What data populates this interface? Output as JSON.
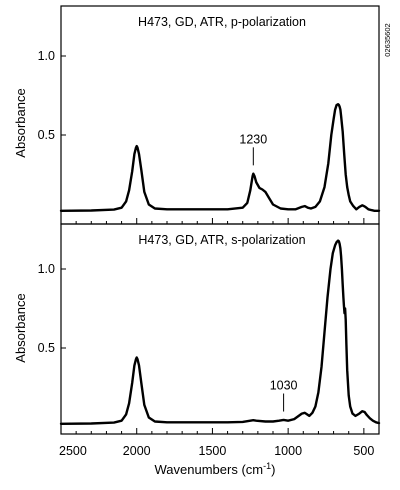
{
  "figure_id": "02635602",
  "chart_data": [
    {
      "type": "line",
      "title": "H473, GD, ATR, p-polarization",
      "ylabel": "Absorbance",
      "xlabel": "",
      "xlim": [
        2500,
        400
      ],
      "ylim": [
        0,
        1.3
      ],
      "y_ticks": [
        {
          "value": 0.5,
          "label": "0.5"
        },
        {
          "value": 1.0,
          "label": "1.0"
        }
      ],
      "annotations": [
        {
          "text": "1230",
          "x": 1230,
          "y": 0.27
        }
      ],
      "series": [
        {
          "x": [
            2500,
            2300,
            2150,
            2100,
            2070,
            2050,
            2030,
            2015,
            2005,
            2000,
            1995,
            1985,
            1970,
            1950,
            1920,
            1880,
            1800,
            1600,
            1400,
            1300,
            1270,
            1250,
            1235,
            1230,
            1222,
            1210,
            1190,
            1170,
            1150,
            1125,
            1100,
            1050,
            1000,
            950,
            910,
            890,
            870,
            850,
            820,
            790,
            760,
            735,
            715,
            700,
            690,
            680,
            670,
            665,
            660,
            655,
            650,
            640,
            630,
            620,
            610,
            600,
            590,
            570,
            550,
            530,
            510,
            500,
            490,
            470,
            450,
            430,
            400
          ],
          "y": [
            0.02,
            0.022,
            0.028,
            0.04,
            0.08,
            0.15,
            0.27,
            0.38,
            0.42,
            0.43,
            0.42,
            0.38,
            0.28,
            0.14,
            0.06,
            0.035,
            0.03,
            0.03,
            0.03,
            0.04,
            0.07,
            0.15,
            0.24,
            0.255,
            0.24,
            0.2,
            0.165,
            0.155,
            0.14,
            0.1,
            0.06,
            0.035,
            0.03,
            0.03,
            0.045,
            0.05,
            0.04,
            0.035,
            0.045,
            0.08,
            0.17,
            0.32,
            0.5,
            0.6,
            0.66,
            0.69,
            0.695,
            0.69,
            0.68,
            0.66,
            0.62,
            0.52,
            0.38,
            0.25,
            0.17,
            0.12,
            0.08,
            0.05,
            0.03,
            0.045,
            0.055,
            0.05,
            0.045,
            0.03,
            0.025,
            0.02,
            0.02
          ]
        }
      ]
    },
    {
      "type": "line",
      "title": "H473, GD, ATR, s-polarization",
      "ylabel": "Absorbance",
      "xlabel": "Wavenumbers (cm-1)",
      "xlim": [
        2500,
        400
      ],
      "ylim": [
        0,
        1.3
      ],
      "x_ticks": [
        2500,
        2000,
        1500,
        1000,
        500
      ],
      "y_ticks": [
        {
          "value": 0.5,
          "label": "0.5"
        },
        {
          "value": 1.0,
          "label": "1.0"
        }
      ],
      "annotations": [
        {
          "text": "1030",
          "x": 1030,
          "y": 0.06
        }
      ],
      "series": [
        {
          "x": [
            2500,
            2300,
            2150,
            2100,
            2070,
            2050,
            2030,
            2015,
            2005,
            2000,
            1995,
            1985,
            1970,
            1950,
            1920,
            1880,
            1800,
            1600,
            1400,
            1300,
            1250,
            1230,
            1210,
            1150,
            1100,
            1060,
            1030,
            1000,
            960,
            930,
            910,
            890,
            875,
            860,
            840,
            820,
            800,
            780,
            760,
            740,
            720,
            705,
            690,
            680,
            670,
            665,
            660,
            655,
            650,
            645,
            640,
            635,
            632,
            628,
            624,
            620,
            615,
            610,
            600,
            590,
            575,
            555,
            530,
            510,
            495,
            480,
            460,
            440,
            420,
            400
          ],
          "y": [
            0.02,
            0.022,
            0.028,
            0.04,
            0.08,
            0.15,
            0.28,
            0.39,
            0.43,
            0.44,
            0.43,
            0.39,
            0.28,
            0.14,
            0.06,
            0.035,
            0.03,
            0.03,
            0.03,
            0.032,
            0.04,
            0.043,
            0.04,
            0.035,
            0.035,
            0.04,
            0.045,
            0.04,
            0.05,
            0.07,
            0.085,
            0.09,
            0.08,
            0.07,
            0.09,
            0.13,
            0.22,
            0.38,
            0.6,
            0.82,
            1.0,
            1.1,
            1.15,
            1.17,
            1.18,
            1.175,
            1.16,
            1.13,
            1.08,
            1.0,
            0.9,
            0.82,
            0.77,
            0.72,
            0.75,
            0.68,
            0.52,
            0.36,
            0.2,
            0.13,
            0.085,
            0.07,
            0.085,
            0.1,
            0.095,
            0.075,
            0.055,
            0.04,
            0.03,
            0.025
          ]
        }
      ]
    }
  ]
}
